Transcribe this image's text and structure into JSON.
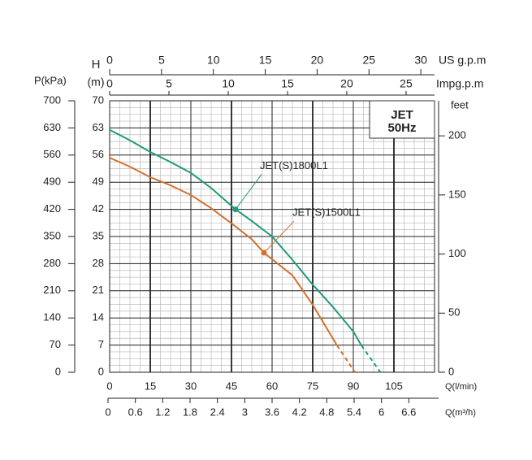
{
  "chart_data": {
    "type": "line",
    "box_text": [
      "JET",
      "50Hz"
    ],
    "axes": {
      "p_kpa": {
        "label": "P(kPa)",
        "lim": [
          0,
          700
        ],
        "ticks": [
          0,
          70,
          140,
          210,
          280,
          350,
          420,
          490,
          560,
          630,
          700
        ]
      },
      "h": {
        "label": [
          "H",
          "(m)"
        ],
        "lim": [
          0,
          70
        ],
        "ticks": [
          0,
          7,
          14,
          21,
          28,
          35,
          42,
          49,
          56,
          63,
          70
        ]
      },
      "feet": {
        "label": "feet",
        "lim": [
          0,
          229.66
        ],
        "ticks": [
          0,
          50,
          100,
          150,
          200
        ]
      },
      "us_gpm": {
        "label": "US g.p.m",
        "lim": [
          0,
          31.32
        ],
        "ticks": [
          0,
          5,
          10,
          15,
          20,
          25,
          30
        ]
      },
      "imp_gpm": {
        "label": "Impg.p.m",
        "lim": [
          0,
          27.4
        ],
        "ticks": [
          0,
          5,
          10,
          15,
          20,
          25
        ]
      },
      "q_l_min": {
        "label": "Q(l/min)",
        "lim": [
          0,
          120
        ],
        "ticks": [
          0,
          15,
          30,
          45,
          60,
          75,
          90,
          105
        ]
      },
      "q_m3h": {
        "label": "Q(m³/h)",
        "lim": [
          0,
          7.2
        ],
        "ticks": [
          0,
          0.6,
          1.2,
          1.8,
          2.4,
          3,
          3.6,
          4.2,
          4.8,
          5.4,
          6,
          6.6
        ]
      }
    },
    "minor_grid": 4,
    "series": [
      {
        "name": "JET(S)1800L1",
        "color": "#1f9a80",
        "segments": [
          {
            "style": "solid",
            "x": [
              0,
              7.5,
              15,
              22.5,
              30,
              37.5,
              46.5,
              52.5,
              60,
              67.5,
              75,
              82.5,
              90,
              93
            ],
            "values": [
              62.5,
              59.8,
              56.8,
              54.2,
              51.4,
              47.5,
              42,
              39,
              35,
              29,
              22.6,
              16.8,
              10.5,
              6.9
            ]
          },
          {
            "style": "dashed",
            "x": [
              93,
              100
            ],
            "values": [
              6.9,
              0
            ]
          }
        ],
        "marker": {
          "x": 46.5,
          "y": 42
        }
      },
      {
        "name": "JET(S)1500L1",
        "color": "#d4702c",
        "segments": [
          {
            "style": "solid",
            "x": [
              0,
              7.5,
              15,
              22.5,
              30,
              37.5,
              45,
              52.5,
              57,
              67.5,
              75,
              84
            ],
            "values": [
              55.3,
              53,
              50.3,
              48.2,
              45.7,
              42.3,
              38.4,
              34.3,
              30.8,
              25,
              17.4,
              6.9
            ]
          },
          {
            "style": "dashed",
            "x": [
              84,
              90.6
            ],
            "values": [
              6.9,
              0
            ]
          }
        ],
        "marker": {
          "x": 57,
          "y": 30.8
        }
      }
    ]
  }
}
